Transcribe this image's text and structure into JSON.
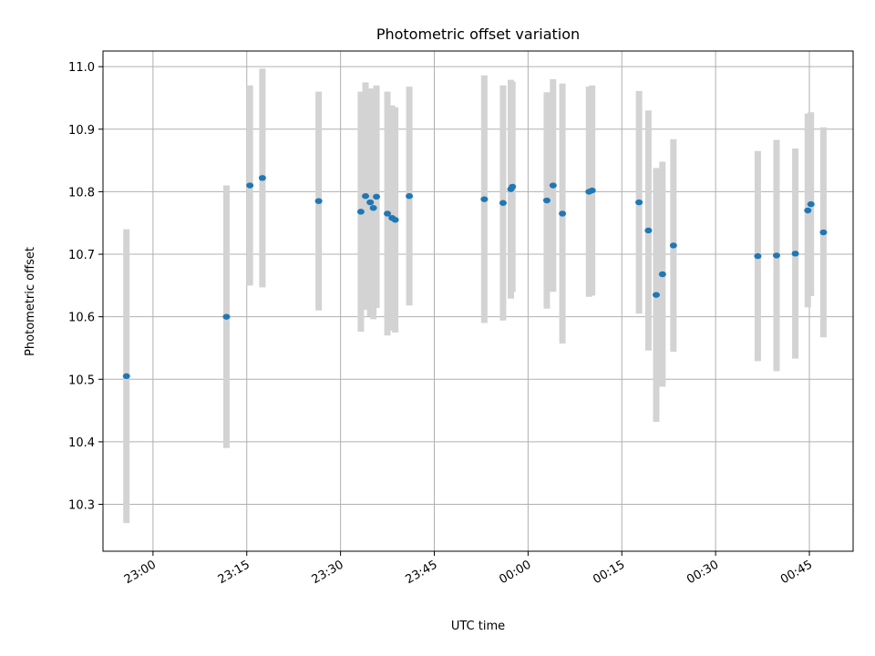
{
  "chart_data": {
    "type": "scatter",
    "title": "Photometric offset variation",
    "xlabel": "UTC time",
    "ylabel": "Photometric offset",
    "xlim": [
      "22:52:00",
      "00:52:00"
    ],
    "ylim": [
      10.225,
      11.025
    ],
    "grid": true,
    "colors": {
      "point": "#1f77b4",
      "errorbar": "#d3d3d3",
      "grid": "#b0b0b0"
    },
    "x_ticks": [
      "23:00",
      "23:15",
      "23:30",
      "23:45",
      "00:00",
      "00:15",
      "00:30",
      "00:45"
    ],
    "y_ticks": [
      "10.3",
      "10.4",
      "10.5",
      "10.6",
      "10.7",
      "10.8",
      "10.9",
      "11.0"
    ],
    "series": [
      {
        "x": [
          "22:55:45",
          "23:11:45",
          "23:15:30",
          "23:17:30",
          "23:26:30",
          "23:33:15",
          "23:34:00",
          "23:34:45",
          "23:35:15",
          "23:35:45",
          "23:37:30",
          "23:38:15",
          "23:38:45",
          "23:41:00",
          "23:53:00",
          "23:56:00",
          "23:57:15",
          "23:57:30",
          "00:03:00",
          "00:04:00",
          "00:05:30",
          "00:09:45",
          "00:10:15",
          "00:17:45",
          "00:19:15",
          "00:20:30",
          "00:21:30",
          "00:23:15",
          "00:36:45",
          "00:39:45",
          "00:42:45",
          "00:44:45",
          "00:45:15",
          "00:47:15"
        ],
        "y": [
          10.505,
          10.6,
          10.81,
          10.822,
          10.785,
          10.768,
          10.793,
          10.783,
          10.774,
          10.792,
          10.765,
          10.758,
          10.755,
          10.793,
          10.788,
          10.782,
          10.804,
          10.808,
          10.786,
          10.81,
          10.765,
          10.8,
          10.802,
          10.783,
          10.738,
          10.635,
          10.668,
          10.714,
          10.697,
          10.698,
          10.701,
          10.77,
          10.78,
          10.735
        ],
        "yerr": [
          0.235,
          0.21,
          0.16,
          0.175,
          0.175,
          0.192,
          0.182,
          0.182,
          0.178,
          0.178,
          0.195,
          0.18,
          0.18,
          0.175,
          0.198,
          0.188,
          0.175,
          0.168,
          0.173,
          0.17,
          0.208,
          0.168,
          0.168,
          0.178,
          0.192,
          0.203,
          0.18,
          0.17,
          0.168,
          0.185,
          0.168,
          0.155,
          0.147,
          0.168
        ]
      }
    ]
  }
}
